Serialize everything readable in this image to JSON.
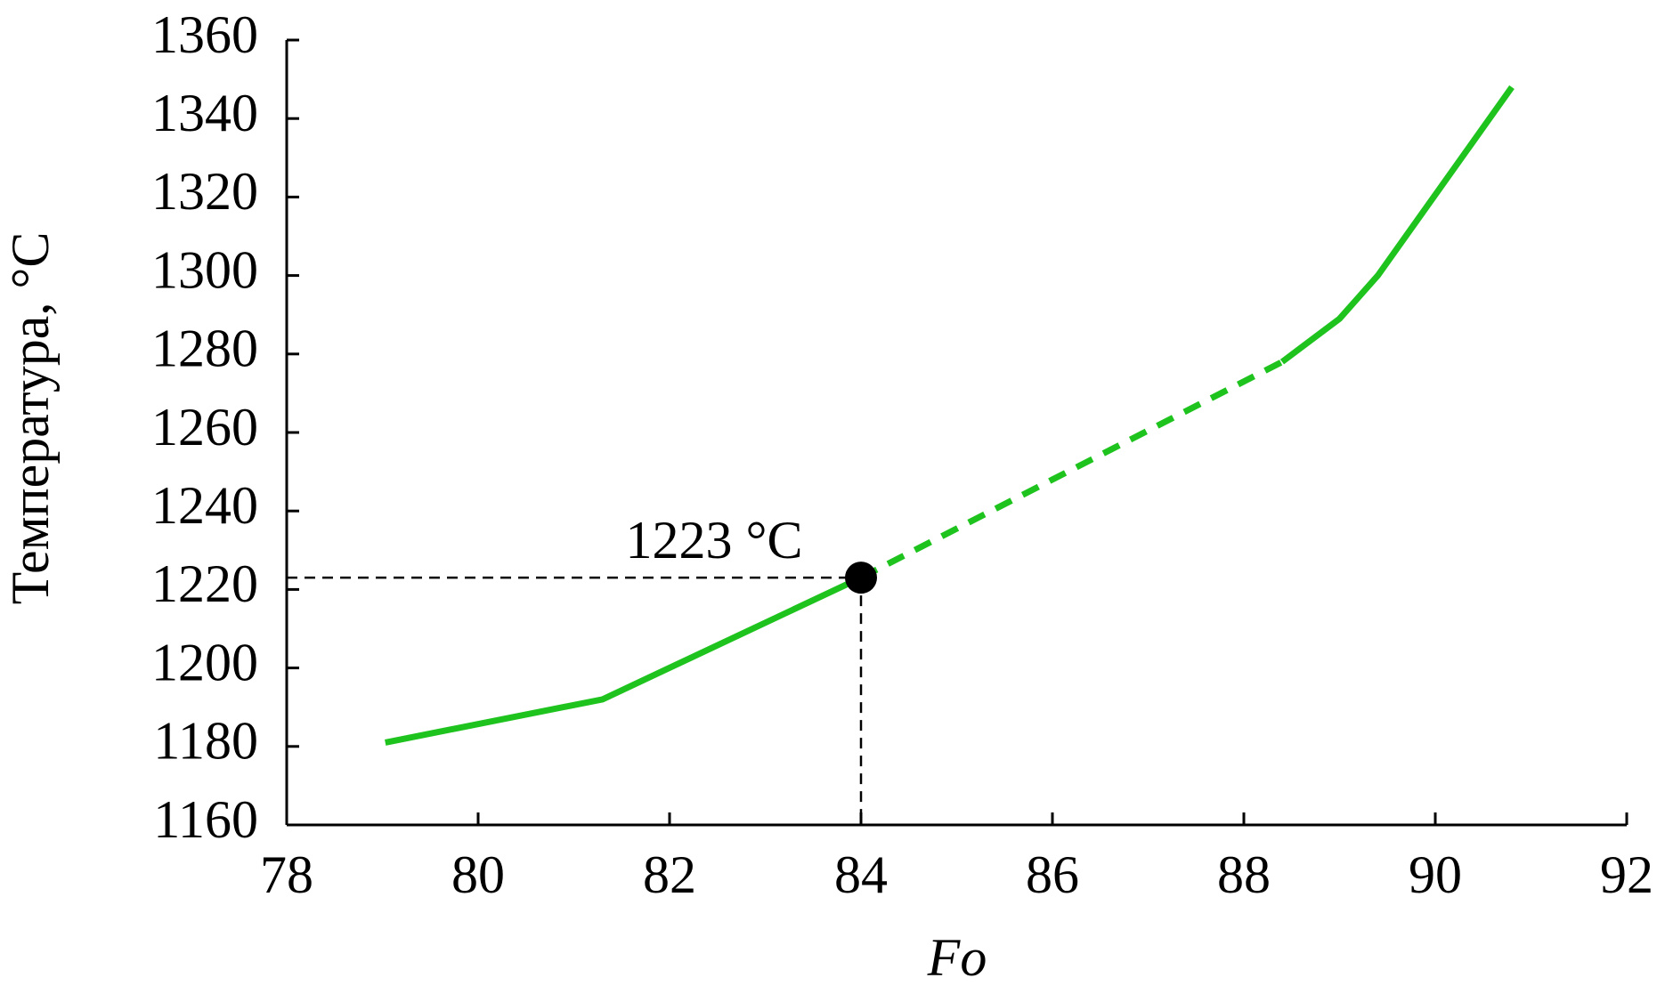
{
  "chart_data": {
    "type": "line",
    "xlabel": "Fo",
    "ylabel": "Температура, °C",
    "xlim": [
      78,
      92
    ],
    "xticks": [
      78,
      80,
      82,
      84,
      86,
      88,
      90,
      92
    ],
    "ylim": [
      1160,
      1360
    ],
    "yticks": [
      1160,
      1180,
      1200,
      1220,
      1240,
      1260,
      1280,
      1300,
      1320,
      1340,
      1360
    ],
    "series": [
      {
        "color": "#1ec31e",
        "style": "solid",
        "x": [
          79.03,
          81.3,
          84
        ],
        "values": [
          1181,
          1192,
          1223
        ]
      },
      {
        "color": "#1ec31e",
        "style": "dashed",
        "x": [
          84,
          86,
          88.4
        ],
        "values": [
          1223,
          1248,
          1278
        ]
      },
      {
        "color": "#1ec31e",
        "style": "solid",
        "x": [
          88.4,
          89,
          89.4,
          90.8
        ],
        "values": [
          1278,
          1289,
          1300,
          1348
        ]
      }
    ],
    "point": {
      "x": 84,
      "y": 1223,
      "label": "1223 °C",
      "color": "#000000"
    }
  }
}
